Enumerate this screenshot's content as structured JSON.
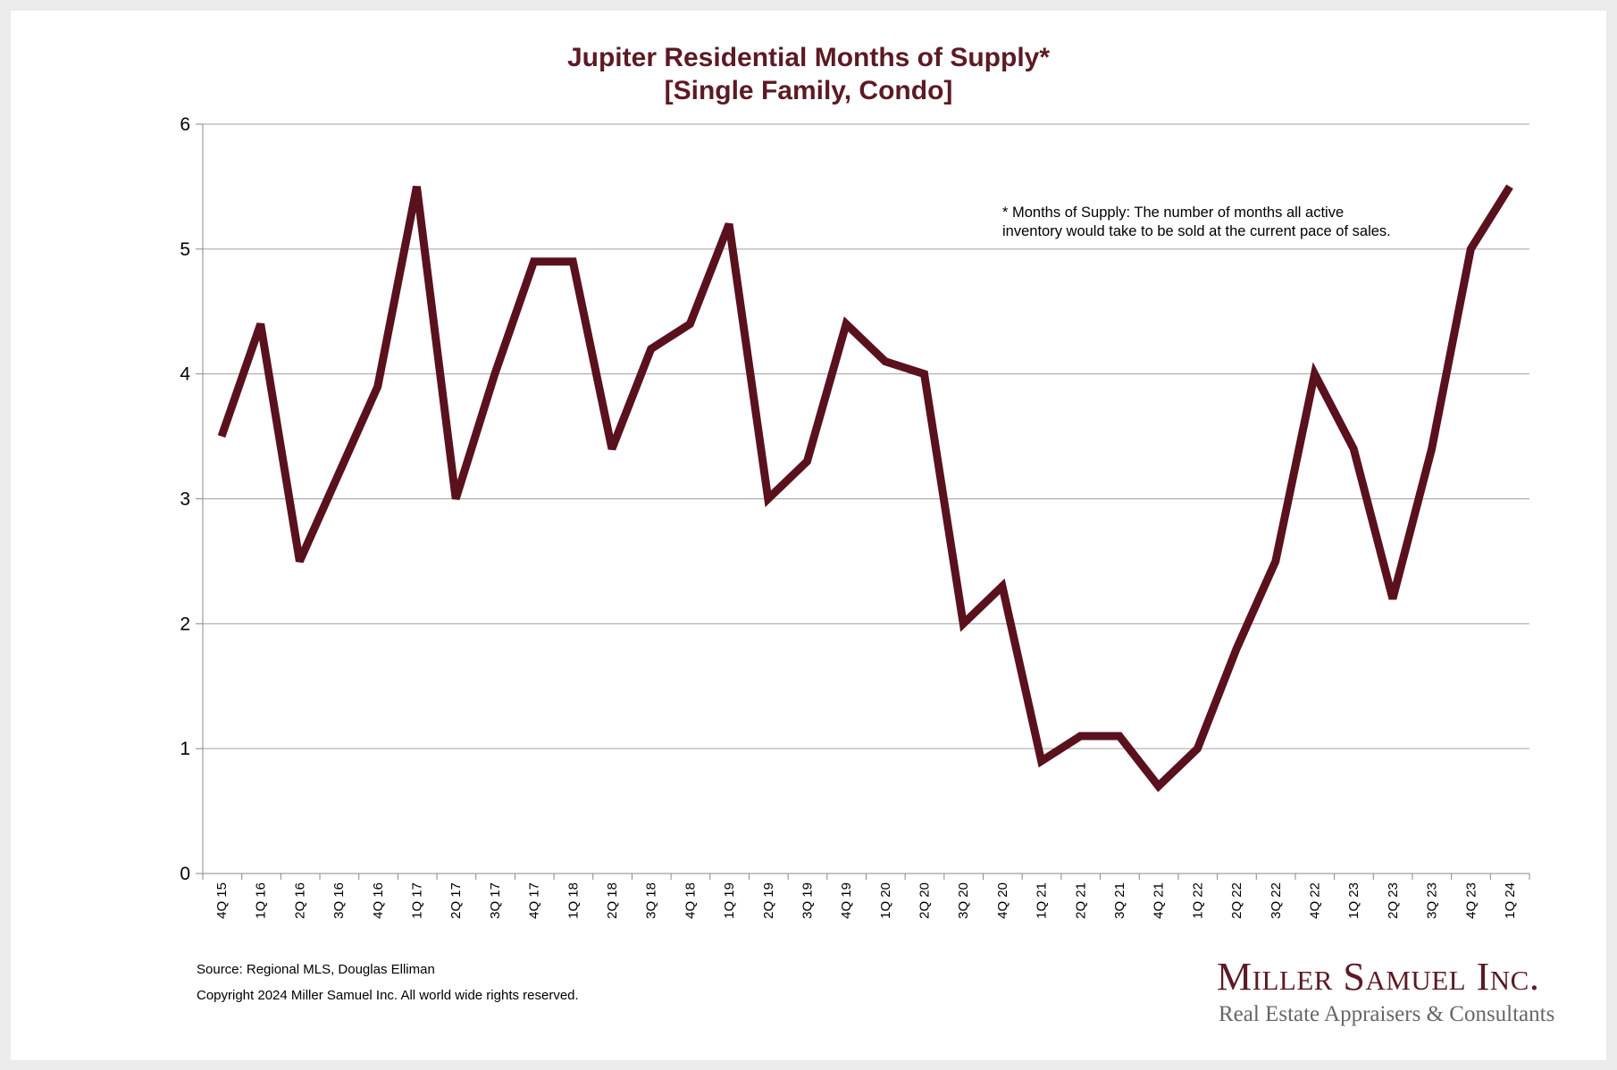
{
  "chart_data": {
    "type": "line",
    "title": "Jupiter Residential Months of Supply*",
    "subtitle": "[Single Family, Condo]",
    "xlabel": "",
    "ylabel": "",
    "ylim": [
      0,
      6
    ],
    "yticks": [
      "0",
      "1",
      "2",
      "3",
      "4",
      "5",
      "6"
    ],
    "grid": true,
    "categories": [
      "4Q 15",
      "1Q 16",
      "2Q 16",
      "3Q 16",
      "4Q 16",
      "1Q 17",
      "2Q 17",
      "3Q 17",
      "4Q 17",
      "1Q 18",
      "2Q 18",
      "3Q 18",
      "4Q 18",
      "1Q 19",
      "2Q 19",
      "3Q 19",
      "4Q 19",
      "1Q 20",
      "2Q 20",
      "3Q 20",
      "4Q 20",
      "1Q 21",
      "2Q 21",
      "3Q 21",
      "4Q 21",
      "1Q 22",
      "2Q 22",
      "3Q 22",
      "4Q 22",
      "1Q 23",
      "2Q 23",
      "3Q 23",
      "4Q 23",
      "1Q 24"
    ],
    "series": [
      {
        "name": "Months of Supply",
        "color": "#5a111e",
        "values": [
          3.5,
          4.4,
          2.5,
          3.2,
          3.9,
          5.5,
          3.0,
          4.0,
          4.9,
          4.9,
          3.4,
          4.2,
          4.4,
          5.2,
          3.0,
          3.3,
          4.4,
          4.1,
          4.0,
          2.0,
          2.3,
          0.9,
          1.1,
          1.1,
          0.7,
          1.0,
          1.8,
          2.5,
          4.0,
          3.4,
          2.2,
          3.4,
          5.0,
          5.5
        ]
      }
    ],
    "annotation": [
      "* Months of Supply: The number of months all active",
      "inventory would take to be sold at the current pace of sales."
    ]
  },
  "footer": {
    "source": "Source: Regional MLS, Douglas Elliman",
    "copyright": "Copyright 2024 Miller Samuel Inc.  All world wide rights reserved."
  },
  "logo": {
    "name": "Miller Samuel Inc.",
    "tagline": "Real Estate Appraisers & Consultants"
  },
  "colors": {
    "title": "#5c1a24",
    "line": "#5a111e",
    "grid": "#a0a0a0"
  }
}
